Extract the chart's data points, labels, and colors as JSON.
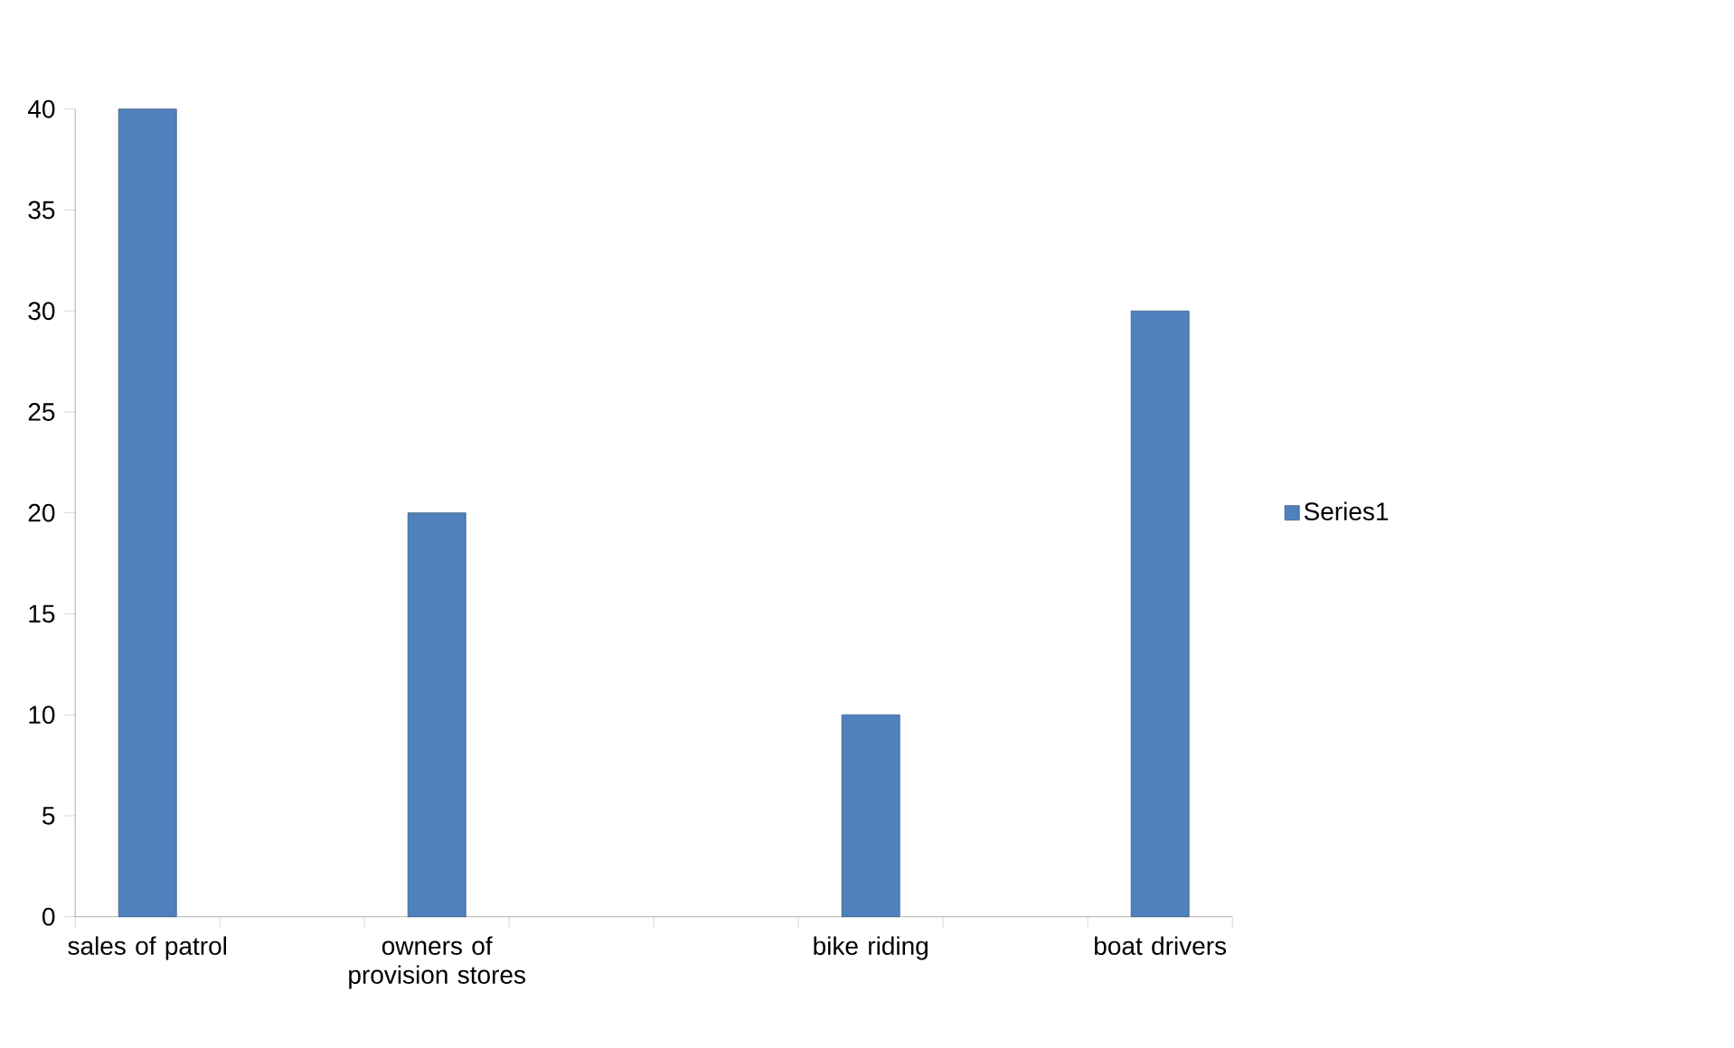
{
  "chart_data": {
    "type": "bar",
    "categories": [
      "sales of patrol",
      null,
      "owners of provision stores",
      null,
      null,
      "bike riding",
      null,
      "boat drivers"
    ],
    "series": [
      {
        "name": "Series1",
        "color": "#4f81bd",
        "values": [
          40,
          null,
          20,
          null,
          null,
          10,
          null,
          30
        ]
      }
    ],
    "ylim": [
      0,
      40
    ],
    "yticks": [
      0,
      5,
      10,
      15,
      20,
      25,
      30,
      35,
      40
    ],
    "grid": false,
    "legend": "right"
  }
}
